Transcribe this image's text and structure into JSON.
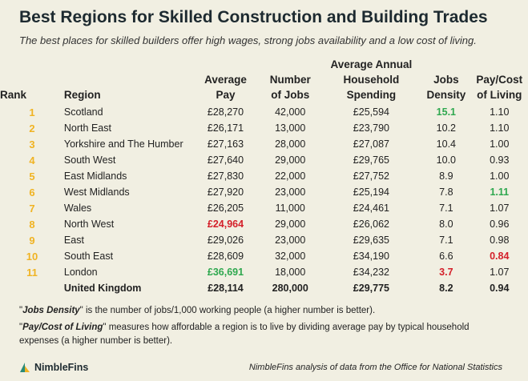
{
  "title": "Best Regions for Skilled Construction and Building Trades",
  "subtitle": "The best places for skilled builders offer high wages, strong jobs availability and a low cost of living.",
  "headers": {
    "rank": "Rank",
    "region": "Region",
    "pay": [
      "Average",
      "Pay"
    ],
    "jobs": [
      "Number",
      "of Jobs"
    ],
    "spending": [
      "Average Annual",
      "Household",
      "Spending"
    ],
    "density": [
      "Jobs",
      "Density"
    ],
    "ratio": [
      "Pay/Cost",
      "of Living"
    ]
  },
  "rows": [
    {
      "rank": "1",
      "region": "Scotland",
      "pay": "£28,270",
      "jobs": "42,000",
      "spending": "£25,594",
      "density": "15.1",
      "ratio": "1.10"
    },
    {
      "rank": "2",
      "region": "North East",
      "pay": "£26,171",
      "jobs": "13,000",
      "spending": "£23,790",
      "density": "10.2",
      "ratio": "1.10"
    },
    {
      "rank": "3",
      "region": "Yorkshire and The Humber",
      "pay": "£27,163",
      "jobs": "28,000",
      "spending": "£27,087",
      "density": "10.4",
      "ratio": "1.00"
    },
    {
      "rank": "4",
      "region": "South West",
      "pay": "£27,640",
      "jobs": "29,000",
      "spending": "£29,765",
      "density": "10.0",
      "ratio": "0.93"
    },
    {
      "rank": "5",
      "region": "East Midlands",
      "pay": "£27,830",
      "jobs": "22,000",
      "spending": "£27,752",
      "density": "8.9",
      "ratio": "1.00"
    },
    {
      "rank": "6",
      "region": "West Midlands",
      "pay": "£27,920",
      "jobs": "23,000",
      "spending": "£25,194",
      "density": "7.8",
      "ratio": "1.11"
    },
    {
      "rank": "7",
      "region": "Wales",
      "pay": "£26,205",
      "jobs": "11,000",
      "spending": "£24,461",
      "density": "7.1",
      "ratio": "1.07"
    },
    {
      "rank": "8",
      "region": "North West",
      "pay": "£24,964",
      "jobs": "29,000",
      "spending": "£26,062",
      "density": "8.0",
      "ratio": "0.96"
    },
    {
      "rank": "9",
      "region": "East",
      "pay": "£29,026",
      "jobs": "23,000",
      "spending": "£29,635",
      "density": "7.1",
      "ratio": "0.98"
    },
    {
      "rank": "10",
      "region": "South East",
      "pay": "£28,609",
      "jobs": "32,000",
      "spending": "£34,190",
      "density": "6.6",
      "ratio": "0.84"
    },
    {
      "rank": "11",
      "region": "London",
      "pay": "£36,691",
      "jobs": "18,000",
      "spending": "£34,232",
      "density": "3.7",
      "ratio": "1.07"
    }
  ],
  "total": {
    "region": "United Kingdom",
    "pay": "£28,114",
    "jobs": "280,000",
    "spending": "£29,775",
    "density": "8.2",
    "ratio": "0.94"
  },
  "highlights": [
    {
      "row": 0,
      "col": "density",
      "tone": "green"
    },
    {
      "row": 5,
      "col": "ratio",
      "tone": "green"
    },
    {
      "row": 7,
      "col": "pay",
      "tone": "red"
    },
    {
      "row": 9,
      "col": "ratio",
      "tone": "red"
    },
    {
      "row": 10,
      "col": "pay",
      "tone": "green"
    },
    {
      "row": 10,
      "col": "density",
      "tone": "red"
    }
  ],
  "notes": {
    "density_term": "Jobs Density",
    "density_text": " is the number of jobs/1,000 working people (a higher number is better).",
    "ratio_term": "Pay/Cost of Living",
    "ratio_text": " measures how affordable a region is to live by dividing average pay by typical household expenses (a higher number is better)."
  },
  "logo_text": "NimbleFins",
  "source": "NimbleFins analysis of data from the Office for National Statistics",
  "colors": {
    "background": "#f1efe2",
    "rank": "#f0b323",
    "good": "#2fa84f",
    "bad": "#d4202a",
    "logo_mark": "#2a8a78"
  },
  "chart_data": {
    "type": "table",
    "title": "Best Regions for Skilled Construction and Building Trades",
    "subtitle": "The best places for skilled builders offer high wages, strong jobs availability and a low cost of living.",
    "columns": [
      "Rank",
      "Region",
      "Average Pay",
      "Number of Jobs",
      "Average Annual Household Spending",
      "Jobs Density",
      "Pay/Cost of Living"
    ],
    "rows": [
      [
        1,
        "Scotland",
        28270,
        42000,
        25594,
        15.1,
        1.1
      ],
      [
        2,
        "North East",
        26171,
        13000,
        23790,
        10.2,
        1.1
      ],
      [
        3,
        "Yorkshire and The Humber",
        27163,
        28000,
        27087,
        10.4,
        1.0
      ],
      [
        4,
        "South West",
        27640,
        29000,
        29765,
        10.0,
        0.93
      ],
      [
        5,
        "East Midlands",
        27830,
        22000,
        27752,
        8.9,
        1.0
      ],
      [
        6,
        "West Midlands",
        27920,
        23000,
        25194,
        7.8,
        1.11
      ],
      [
        7,
        "Wales",
        26205,
        11000,
        24461,
        7.1,
        1.07
      ],
      [
        8,
        "North West",
        24964,
        29000,
        26062,
        8.0,
        0.96
      ],
      [
        9,
        "East",
        29026,
        23000,
        29635,
        7.1,
        0.98
      ],
      [
        10,
        "South East",
        28609,
        32000,
        34190,
        6.6,
        0.84
      ],
      [
        11,
        "London",
        36691,
        18000,
        34232,
        3.7,
        1.07
      ]
    ],
    "total_row": [
      "",
      "United Kingdom",
      28114,
      280000,
      29775,
      8.2,
      0.94
    ]
  }
}
